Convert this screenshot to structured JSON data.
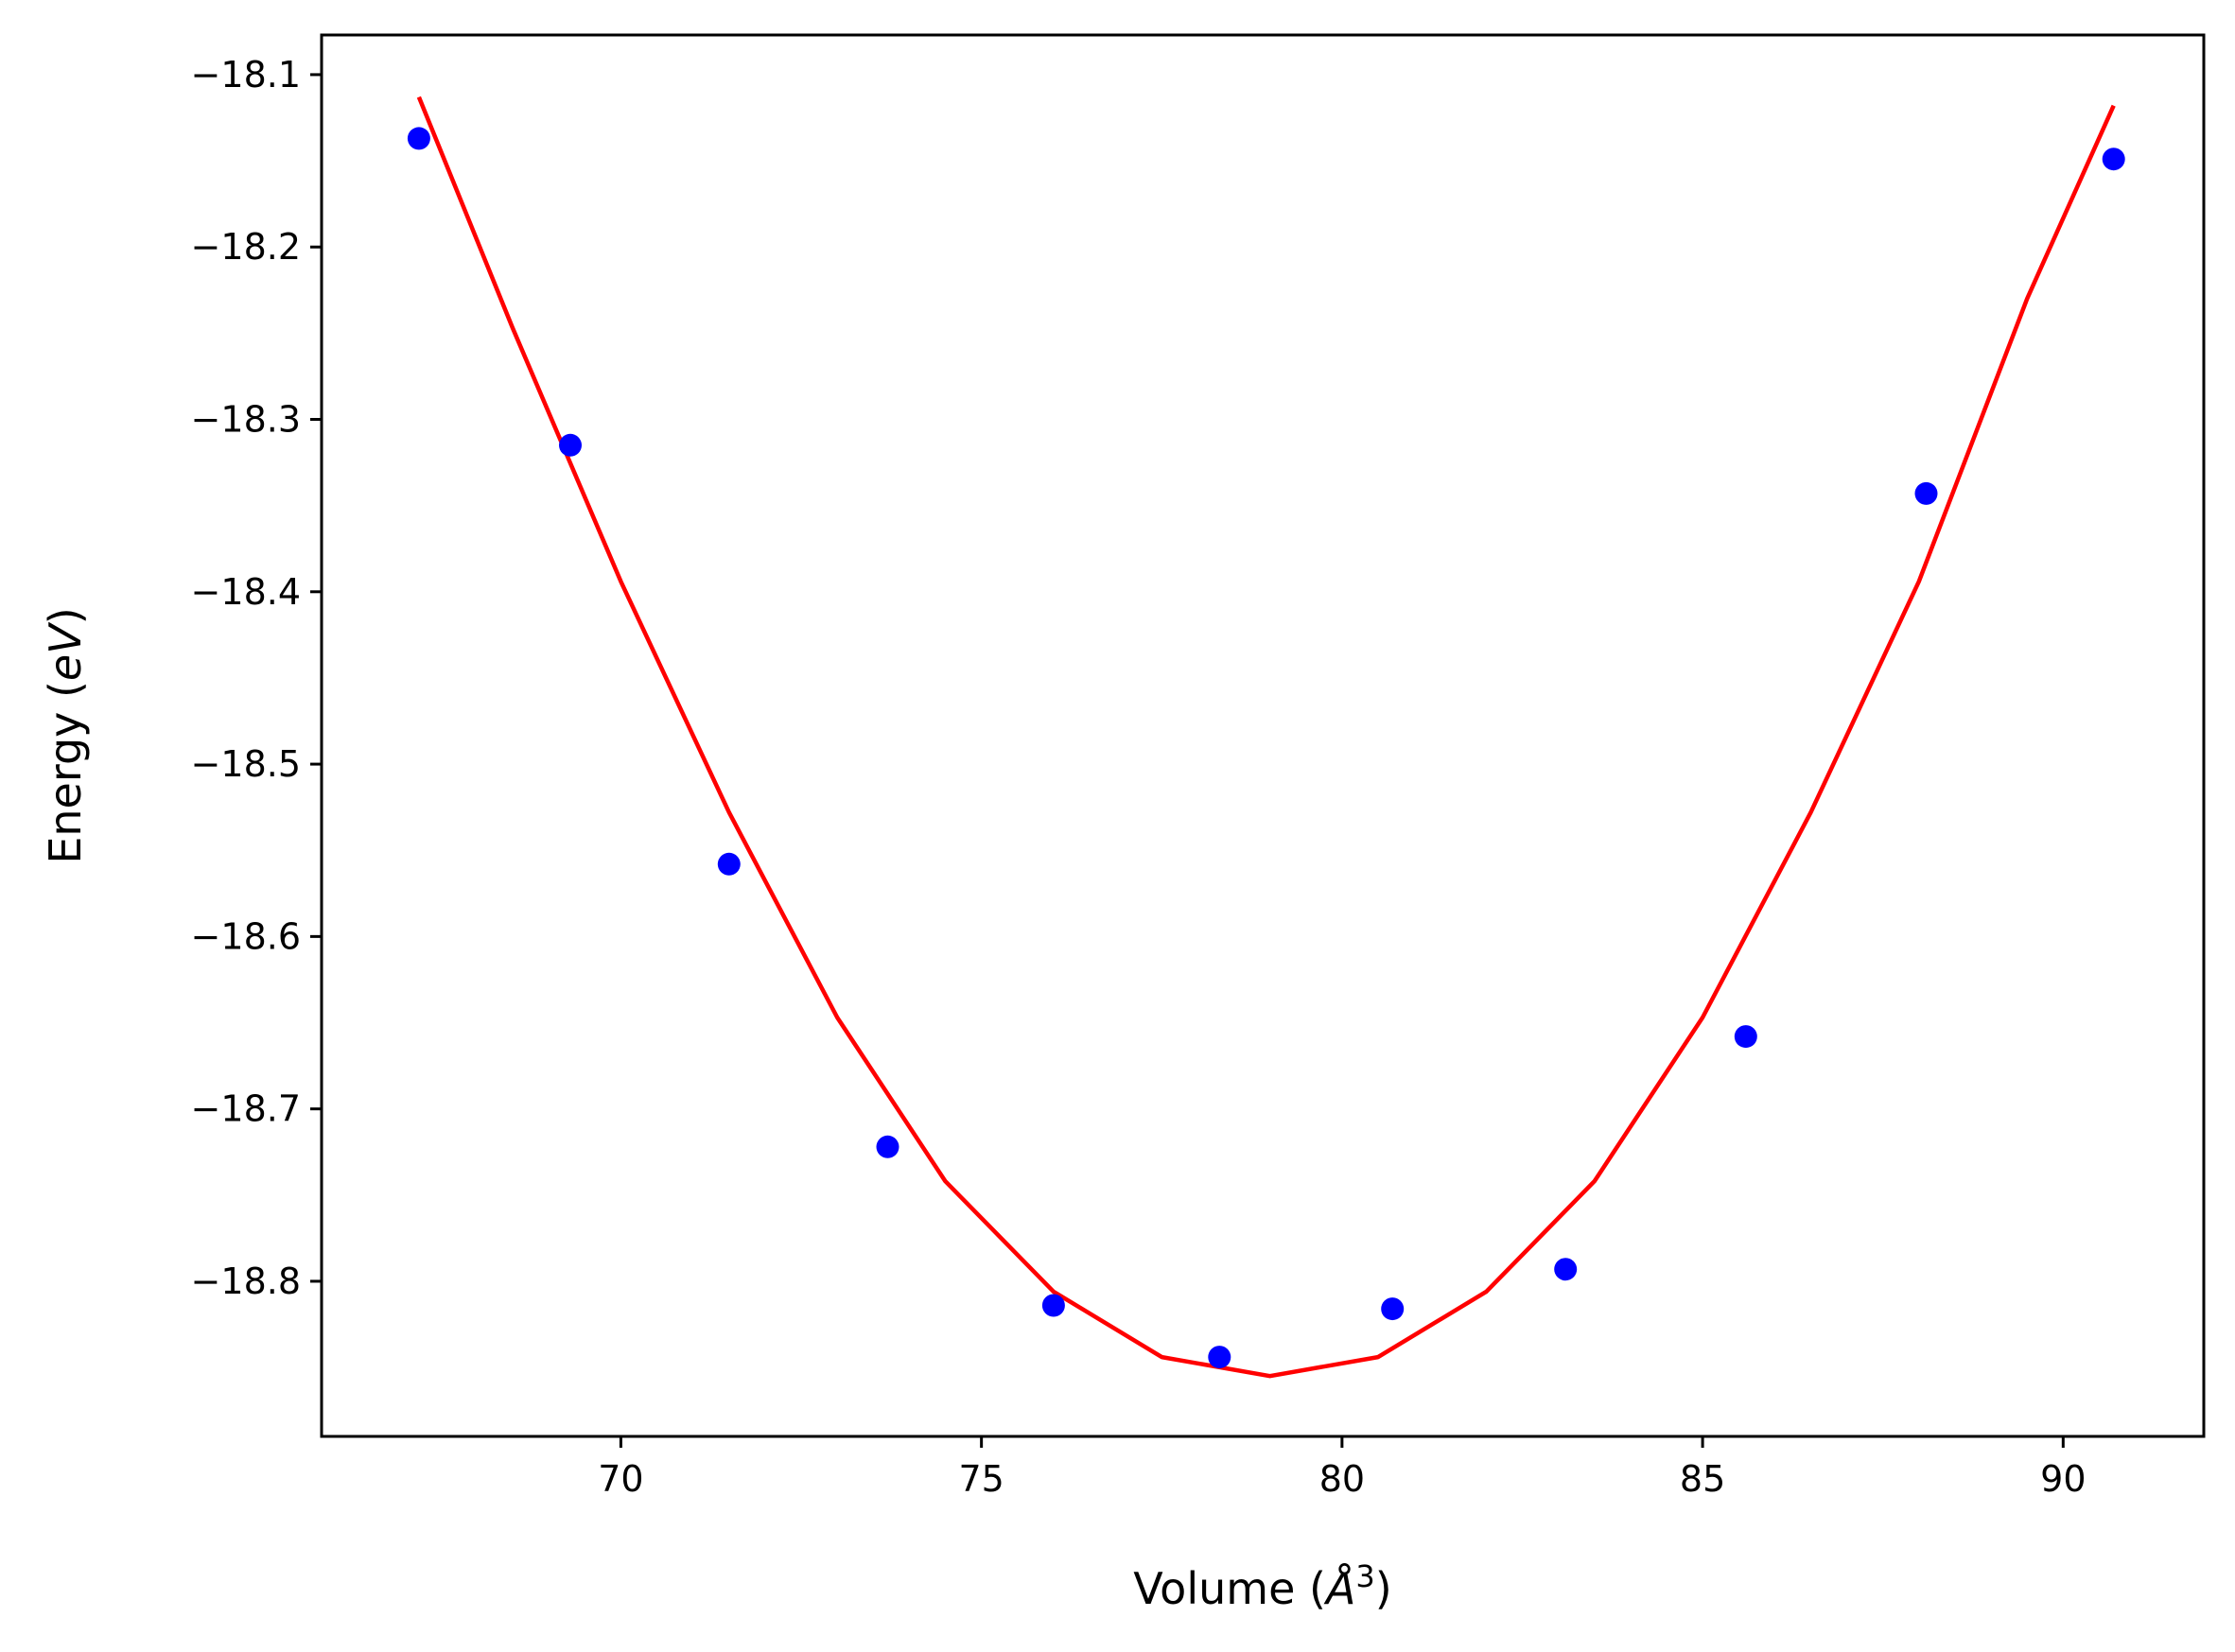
{
  "chart_data": {
    "type": "scatter",
    "title": "",
    "xlabel": {
      "prefix": "Volume (",
      "italic": "Å",
      "sup": "3",
      "suffix": ")"
    },
    "ylabel": {
      "prefix": "Energy (",
      "italic": "eV",
      "suffix": ")"
    },
    "xlim": [
      65.85,
      91.95
    ],
    "ylim": [
      -18.89,
      -18.077
    ],
    "xticks": [
      70,
      75,
      80,
      85,
      90
    ],
    "xtick_labels": [
      "70",
      "75",
      "80",
      "85",
      "90"
    ],
    "yticks": [
      -18.1,
      -18.2,
      -18.3,
      -18.4,
      -18.5,
      -18.6,
      -18.7,
      -18.8
    ],
    "ytick_labels": [
      "−18.1",
      "−18.2",
      "−18.3",
      "−18.4",
      "−18.5",
      "−18.6",
      "−18.7",
      "−18.8"
    ],
    "grid": false,
    "series": [
      {
        "kind": "points",
        "color": "#0000ff",
        "x": [
          67.2,
          69.3,
          71.5,
          73.7,
          76.0,
          78.3,
          80.7,
          83.1,
          85.6,
          88.1,
          90.7
        ],
        "y": [
          -18.137,
          -18.315,
          -18.558,
          -18.722,
          -18.814,
          -18.844,
          -18.816,
          -18.793,
          -18.658,
          -18.343,
          -18.149
        ]
      },
      {
        "kind": "fit-curve",
        "color": "#ff0000",
        "x": [
          67.2,
          68.5,
          70.0,
          71.5,
          73.0,
          74.5,
          76.0,
          77.5,
          79.0,
          80.5,
          82.0,
          83.5,
          85.0,
          86.5,
          88.0,
          89.5,
          90.7
        ],
        "y": [
          -18.113,
          -18.247,
          -18.394,
          -18.528,
          -18.647,
          -18.742,
          -18.806,
          -18.844,
          -18.855,
          -18.844,
          -18.806,
          -18.742,
          -18.647,
          -18.528,
          -18.394,
          -18.23,
          -18.118
        ]
      }
    ]
  }
}
